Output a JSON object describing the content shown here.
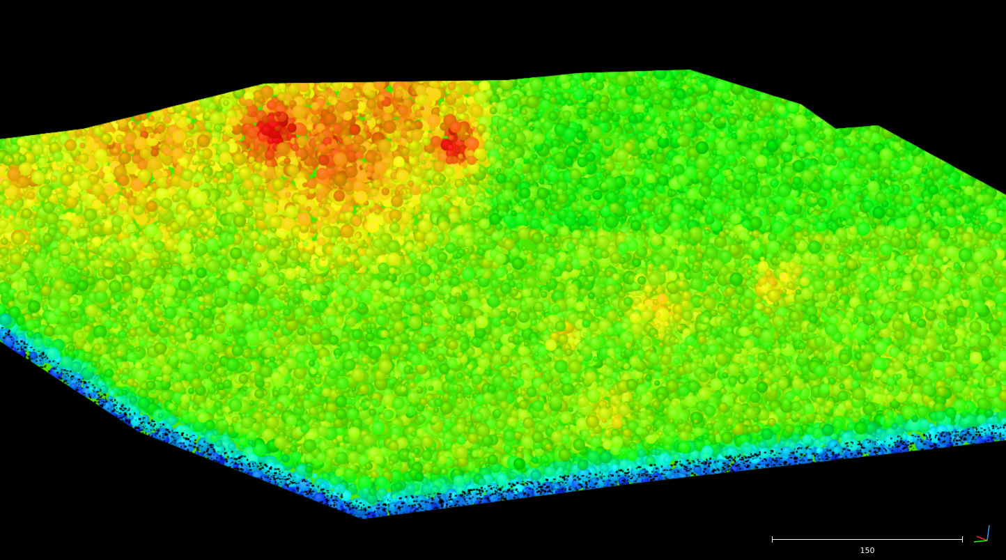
{
  "viewer": {
    "background": "#000000",
    "colormap": [
      "#0000ff",
      "#00ff00",
      "#ffff00",
      "#ff0000"
    ]
  },
  "scale_bar": {
    "label": "150"
  },
  "axis_triad": {
    "x_color": "#ff2020",
    "y_color": "#20ff20",
    "z_color": "#3399ff"
  }
}
